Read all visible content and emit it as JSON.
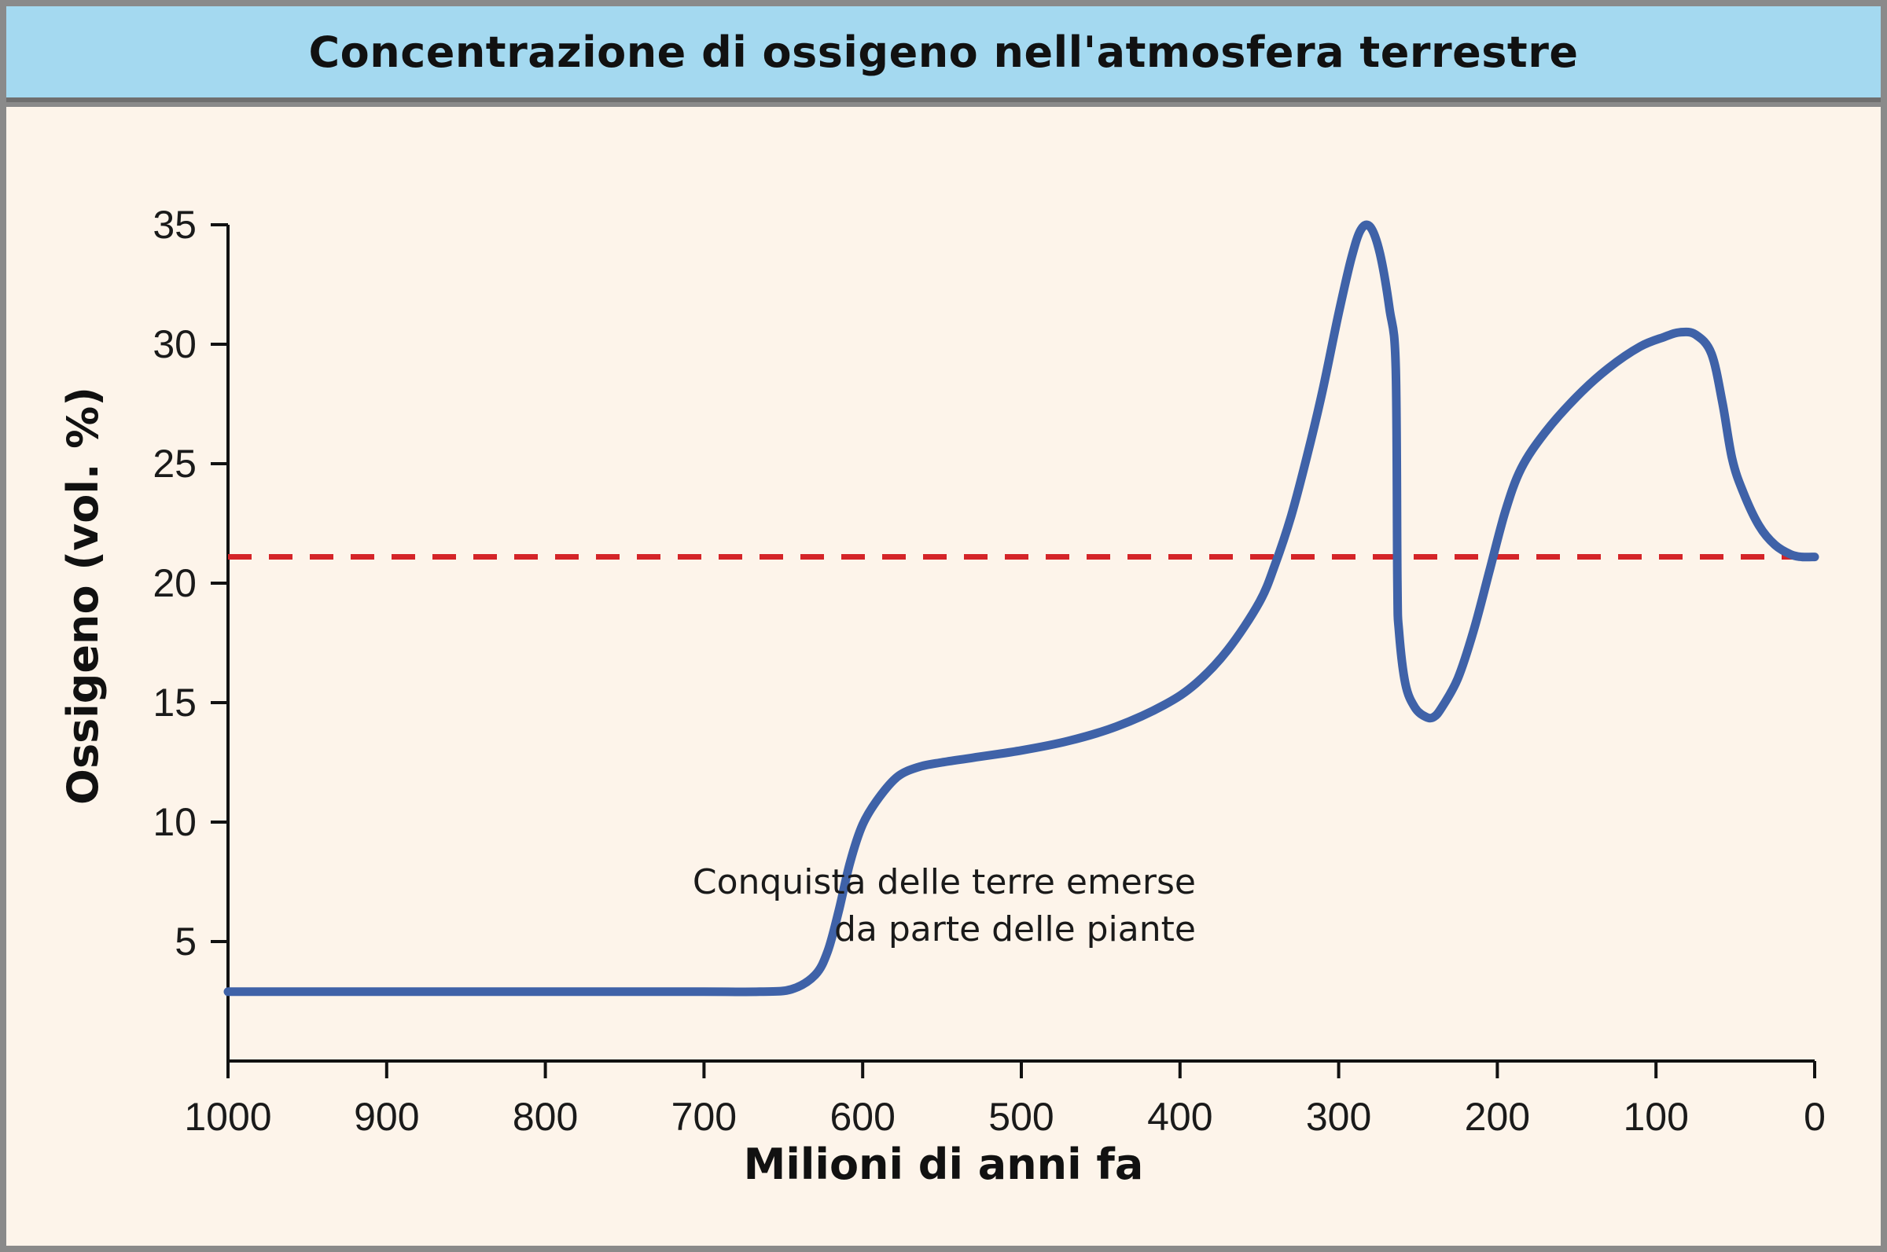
{
  "header": {
    "title": "Concentrazione di ossigeno nell'atmosfera terrestre"
  },
  "chart_data": {
    "type": "line",
    "title": "Concentrazione di ossigeno nell'atmosfera terrestre",
    "xlabel": "Milioni di anni fa",
    "ylabel": "Ossigeno (vol. %)",
    "xlim": [
      1000,
      0
    ],
    "ylim": [
      0,
      35
    ],
    "x_ticks": [
      1000,
      900,
      800,
      700,
      600,
      500,
      400,
      300,
      200,
      100,
      0
    ],
    "y_ticks": [
      5,
      10,
      15,
      20,
      25,
      30,
      35
    ],
    "grid": false,
    "series": [
      {
        "color": "#3f62a8",
        "x": [
          1000,
          900,
          800,
          700,
          665,
          645,
          630,
          622,
          615,
          608,
          600,
          590,
          578,
          565,
          550,
          530,
          500,
          470,
          440,
          410,
          390,
          370,
          350,
          340,
          330,
          320,
          310,
          300,
          292,
          286,
          280,
          274,
          268,
          264,
          263,
          262,
          258,
          252,
          245,
          240,
          235,
          225,
          215,
          205,
          195,
          185,
          170,
          150,
          130,
          110,
          95,
          85,
          75,
          65,
          58,
          52,
          45,
          35,
          25,
          15,
          8,
          0
        ],
        "y": [
          2.9,
          2.9,
          2.9,
          2.9,
          2.9,
          3.0,
          3.6,
          4.6,
          6.3,
          8.3,
          9.9,
          11.0,
          11.9,
          12.3,
          12.5,
          12.7,
          13.0,
          13.4,
          14.0,
          14.9,
          15.8,
          17.2,
          19.2,
          20.8,
          22.8,
          25.3,
          28.1,
          31.3,
          33.6,
          34.8,
          34.9,
          33.8,
          31.5,
          29.0,
          20.0,
          18.0,
          15.8,
          14.8,
          14.4,
          14.4,
          14.8,
          16.0,
          18.0,
          20.5,
          23.0,
          24.8,
          26.3,
          27.8,
          29.0,
          29.9,
          30.3,
          30.5,
          30.4,
          29.6,
          27.5,
          25.2,
          23.8,
          22.4,
          21.6,
          21.2,
          21.1,
          21.1
        ]
      }
    ],
    "reference_lines": [
      {
        "y": 21.1,
        "style": "dashed",
        "color": "#d42428"
      }
    ],
    "annotations": [
      {
        "lines": [
          "Conquista delle terre emerse",
          "da parte delle piante"
        ],
        "x": 390,
        "y": 7
      }
    ]
  }
}
